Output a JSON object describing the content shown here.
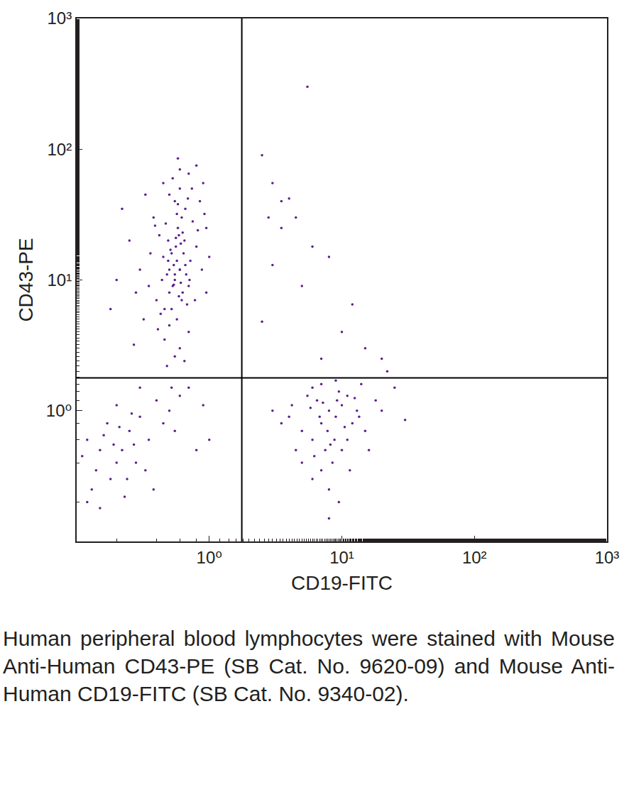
{
  "chart_data": {
    "type": "scatter",
    "x_label": "CD19-FITC",
    "y_label": "CD43-PE",
    "caption": "Human peripheral blood lymphocytes were stained with Mouse Anti-Human CD43-PE (SB Cat. No. 9620-09) and Mouse Anti-Human CD19-FITC (SB Cat. No. 9340-02).",
    "log": true,
    "grid": false,
    "color": "#5a1e8c",
    "marker": "dot",
    "xlim": [
      0.1,
      1000
    ],
    "ylim": [
      0.1,
      1000
    ],
    "xticks": [
      {
        "value": 1,
        "label": "10⁰"
      },
      {
        "value": 10,
        "label": "10¹"
      },
      {
        "value": 100,
        "label": "10²"
      },
      {
        "value": 1000,
        "label": "10³"
      }
    ],
    "yticks": [
      {
        "value": 1,
        "label": "10⁰"
      },
      {
        "value": 10,
        "label": "10¹"
      },
      {
        "value": 100,
        "label": "10²"
      },
      {
        "value": 1000,
        "label": "10³"
      }
    ],
    "gates": {
      "x": 1.76,
      "y": 1.78
    },
    "x": [
      0.55,
      0.6,
      0.5,
      0.45,
      0.65,
      0.7,
      0.52,
      0.58,
      0.62,
      0.48,
      0.4,
      0.72,
      0.8,
      0.35,
      0.55,
      0.6,
      0.66,
      0.5,
      0.57,
      0.68,
      0.75,
      0.85,
      0.9,
      0.42,
      0.38,
      0.3,
      0.32,
      0.28,
      0.46,
      0.6,
      0.7,
      0.78,
      0.88,
      0.95,
      0.53,
      0.6,
      0.7,
      0.45,
      0.5,
      0.64,
      0.56,
      0.49,
      0.61,
      0.54,
      0.59,
      0.67,
      0.44,
      0.51,
      0.63,
      0.57,
      0.47,
      0.69,
      0.74,
      0.82,
      0.36,
      0.41,
      0.55,
      0.65,
      0.25,
      0.22,
      0.2,
      0.18,
      0.33,
      0.95,
      1.0,
      0.92,
      0.58,
      0.8,
      0.27,
      0.52,
      0.48,
      0.53,
      0.57,
      0.61,
      0.5,
      0.46,
      0.63,
      0.55,
      0.59,
      0.52,
      0.66,
      0.71,
      0.43,
      0.39,
      0.58,
      0.62,
      0.54,
      0.49,
      0.6,
      0.56,
      7,
      8,
      6,
      9,
      10,
      5,
      7.5,
      6.5,
      8.5,
      4,
      12,
      11,
      9.5,
      5.5,
      7,
      8,
      6,
      10,
      13,
      15,
      4.5,
      3.5,
      7,
      9,
      6,
      11,
      20,
      25,
      30,
      14,
      8,
      9.5,
      5,
      3,
      16,
      18,
      7.8,
      8.8,
      6.8,
      10.5,
      5.8,
      12.5,
      7.2,
      9.2,
      4.2,
      6.2,
      11.5,
      8.2,
      13.5,
      22,
      0.15,
      0.2,
      0.12,
      0.18,
      0.25,
      0.22,
      0.14,
      0.17,
      0.3,
      0.28,
      0.11,
      0.13,
      0.19,
      0.24,
      0.16,
      0.21,
      0.27,
      0.35,
      0.4,
      0.5,
      0.6,
      0.45,
      0.7,
      0.9,
      0.12,
      0.15,
      0.23,
      0.33,
      0.38,
      0.55,
      0.8,
      1.0,
      0.3,
      0.2,
      0.26,
      5.5,
      2.5,
      3,
      4,
      3.5,
      2.8,
      3.5,
      4.5,
      6,
      8,
      12,
      5,
      10,
      7,
      20,
      2.5,
      3,
      15
    ],
    "y": [
      10,
      12,
      8,
      15,
      20,
      9,
      6,
      25,
      30,
      11,
      7,
      14,
      18,
      9,
      40,
      50,
      35,
      4.5,
      5,
      6.5,
      28,
      40,
      55,
      22,
      30,
      12,
      5,
      8,
      3.5,
      3,
      4,
      7,
      12,
      25,
      60,
      70,
      65,
      55,
      45,
      16,
      18,
      20,
      9.5,
      13,
      7.5,
      11,
      10,
      17,
      23,
      32,
      27,
      42,
      50,
      24,
      16,
      4.2,
      2.6,
      2.4,
      20,
      35,
      10,
      6,
      45,
      8,
      15,
      32,
      85,
      75,
      3.2,
      1.5,
      2.2,
      9,
      14,
      19,
      12,
      6,
      8,
      11,
      22,
      16,
      13,
      10,
      5.5,
      26,
      38,
      7,
      9.2,
      14,
      12,
      21,
      0.8,
      1.0,
      0.6,
      0.9,
      1.1,
      0.7,
      0.5,
      1.2,
      0.4,
      0.9,
      0.8,
      0.6,
      1.4,
      1.3,
      0.35,
      0.25,
      0.3,
      0.5,
      1.0,
      0.7,
      0.5,
      0.8,
      1.6,
      1.7,
      1.5,
      1.3,
      1.0,
      1.5,
      0.85,
      1.6,
      0.15,
      0.2,
      0.4,
      1.0,
      0.5,
      1.2,
      0.7,
      0.6,
      0.9,
      0.75,
      1.05,
      1.25,
      1.15,
      1.2,
      1.1,
      0.45,
      0.35,
      0.55,
      0.9,
      2.0,
      0.5,
      0.4,
      0.6,
      0.3,
      0.7,
      0.5,
      0.35,
      0.8,
      0.9,
      0.4,
      0.45,
      0.25,
      0.55,
      0.3,
      0.65,
      0.75,
      0.55,
      0.6,
      1.2,
      1.0,
      1.3,
      0.8,
      1.5,
      1.1,
      0.2,
      0.18,
      0.22,
      0.35,
      0.25,
      0.7,
      0.5,
      0.6,
      1.5,
      1.1,
      0.95,
      300,
      90,
      55,
      42,
      40,
      30,
      25,
      30,
      18,
      15,
      6.5,
      9,
      4,
      2.5,
      2.5,
      4.8,
      13,
      3
    ]
  }
}
